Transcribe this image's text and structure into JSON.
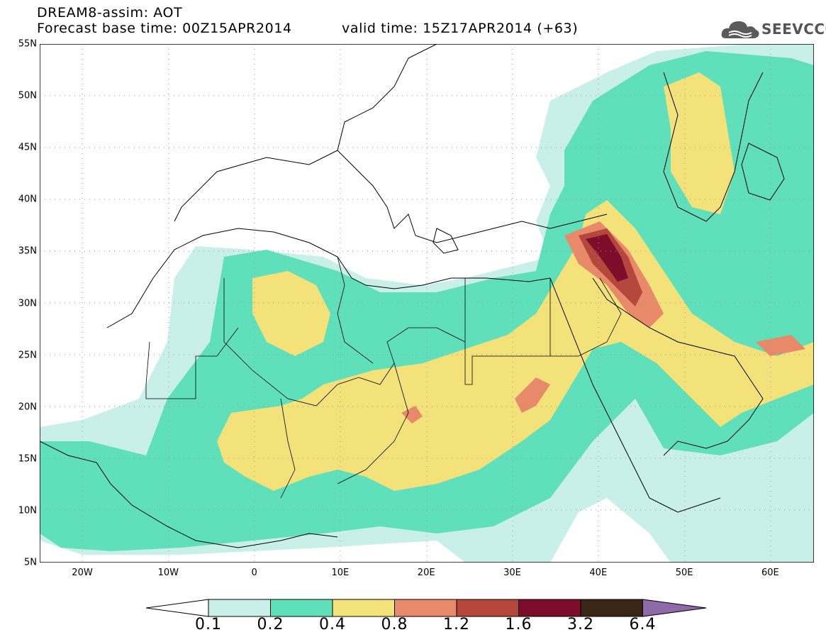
{
  "header": {
    "line1": "DREAM8-assim: AOT",
    "line2_left": "Forecast base time: 00Z15APR2014",
    "line2_right": "valid time: 15Z17APR2014 (+63)"
  },
  "logo": {
    "text": "SEEVCCC",
    "icon": "cloud-icon"
  },
  "map": {
    "lat_ticks": [
      "55N",
      "50N",
      "45N",
      "40N",
      "35N",
      "30N",
      "25N",
      "20N",
      "15N",
      "10N",
      "5N"
    ],
    "lon_ticks": [
      "20W",
      "10W",
      "0",
      "10E",
      "20E",
      "30E",
      "40E",
      "50E",
      "60E"
    ]
  },
  "colorbar": {
    "colors": [
      "#c9f0e8",
      "#5fe0bb",
      "#f3e27a",
      "#e8896a",
      "#b5463b",
      "#7d0d2a",
      "#3b2616",
      "#8e6aa8"
    ],
    "labels": [
      "0.1",
      "0.2",
      "0.4",
      "0.8",
      "1.2",
      "1.6",
      "3.2",
      "6.4"
    ]
  }
}
